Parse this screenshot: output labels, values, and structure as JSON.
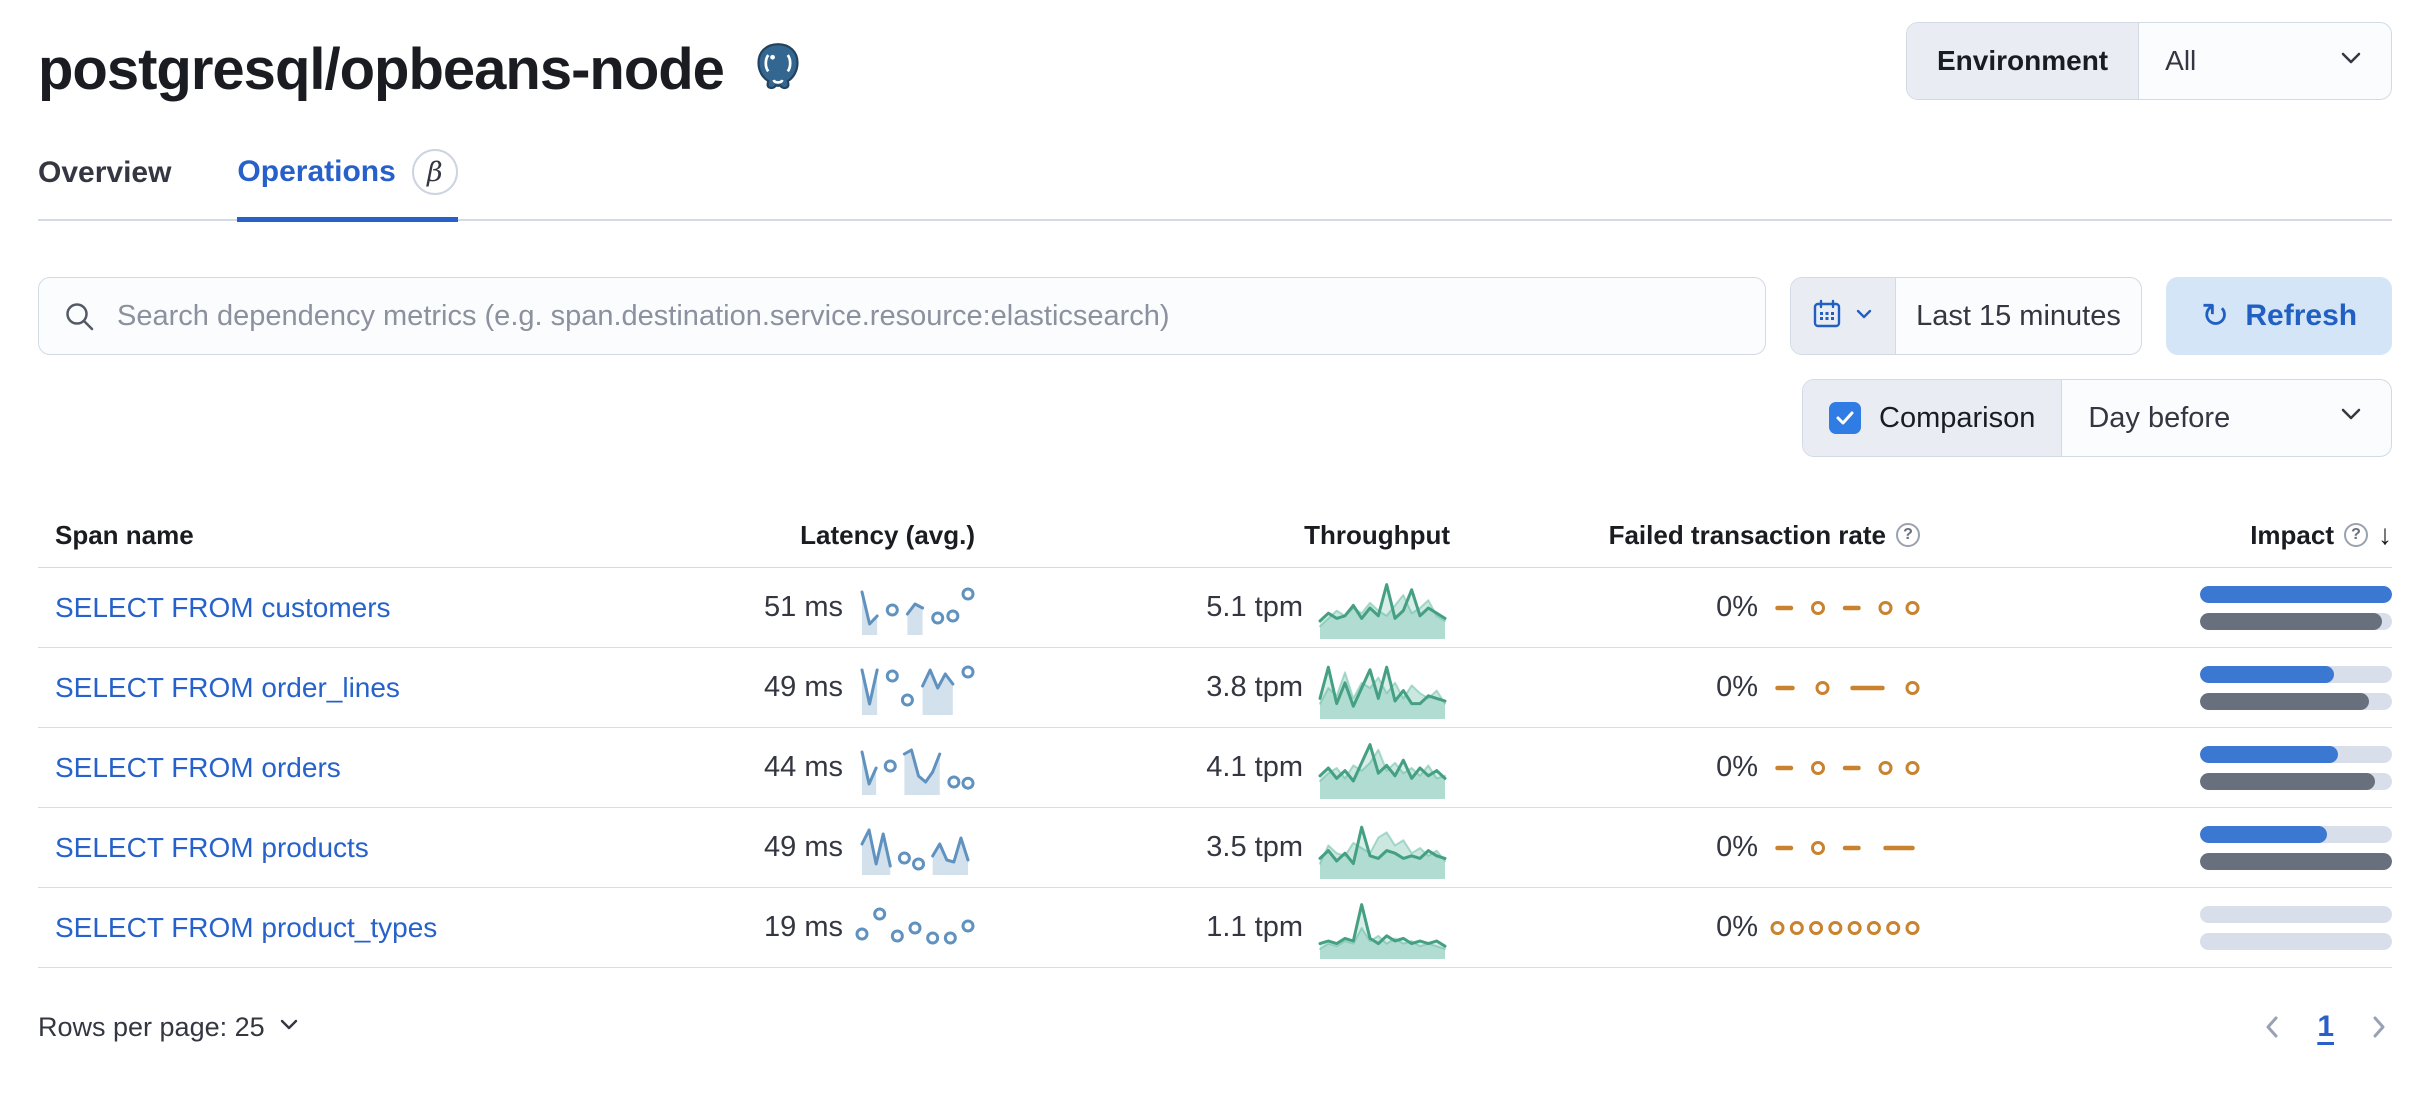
{
  "header": {
    "title": "postgresql/opbeans-node",
    "environment_label": "Environment",
    "environment_value": "All"
  },
  "tabs": [
    {
      "label": "Overview",
      "active": false
    },
    {
      "label": "Operations",
      "active": true,
      "beta": "β"
    }
  ],
  "search": {
    "placeholder": "Search dependency metrics (e.g. span.destination.service.resource:elasticsearch)"
  },
  "time_controls": {
    "range_label": "Last 15 minutes",
    "refresh_label": "Refresh",
    "refresh_glyph": "↻",
    "comparison_label": "Comparison",
    "comparison_checked": true,
    "comparison_value": "Day before"
  },
  "colors": {
    "link_blue": "#2662c9",
    "impact_blue": "#3a78d2",
    "impact_grey": "#69707d",
    "latency_blue": "#6092C0",
    "throughput_green": "#45a083",
    "failed_orange": "#c9822e"
  },
  "table": {
    "columns": [
      "Span name",
      "Latency (avg.)",
      "Throughput",
      "Failed transaction rate",
      "Impact"
    ],
    "sort_arrow": "↓",
    "rows": [
      {
        "span_name": "SELECT FROM customers",
        "latency": "51 ms",
        "throughput": "5.1 tpm",
        "failed_rate": "0%",
        "impact": {
          "current": 100,
          "previous": 95
        },
        "latency_spark": [
          0.9,
          0.1,
          0.3,
          null,
          0.45,
          null,
          0.35,
          0.6,
          0.5,
          null,
          0.25,
          null,
          0.3,
          null,
          0.85
        ],
        "throughput_spark": {
          "current": [
            0.25,
            0.4,
            0.3,
            0.35,
            0.55,
            0.3,
            0.5,
            0.35,
            0.95,
            0.3,
            0.45,
            0.85,
            0.35,
            0.5,
            0.4,
            0.3
          ],
          "previous": [
            0.15,
            0.3,
            0.45,
            0.35,
            0.5,
            0.4,
            0.6,
            0.45,
            0.35,
            0.55,
            0.75,
            0.4,
            0.5,
            0.65,
            0.35,
            0.25
          ]
        },
        "failed_spark": [
          0.5,
          0.5,
          null,
          0.5,
          null,
          0.5,
          0.5,
          null,
          0.5,
          null,
          0.5
        ]
      },
      {
        "span_name": "SELECT FROM order_lines",
        "latency": "49 ms",
        "throughput": "3.8 tpm",
        "failed_rate": "0%",
        "impact": {
          "current": 70,
          "previous": 88
        },
        "latency_spark": [
          0.95,
          0.1,
          0.95,
          null,
          0.8,
          null,
          0.2,
          null,
          0.55,
          0.95,
          0.5,
          0.85,
          0.6,
          null,
          0.9
        ],
        "throughput_spark": {
          "current": [
            0.3,
            0.9,
            0.2,
            0.6,
            0.15,
            0.5,
            0.85,
            0.3,
            0.9,
            0.25,
            0.45,
            0.2,
            0.2,
            0.35,
            0.3,
            0.25
          ],
          "previous": [
            0.2,
            0.5,
            0.35,
            0.8,
            0.3,
            0.6,
            0.5,
            0.7,
            0.4,
            0.6,
            0.3,
            0.55,
            0.4,
            0.3,
            0.45,
            0.2
          ]
        },
        "failed_spark": [
          0.5,
          0.5,
          null,
          0.5,
          null,
          0.5,
          0.5,
          0.5,
          null,
          0.5
        ]
      },
      {
        "span_name": "SELECT FROM orders",
        "latency": "44 ms",
        "throughput": "4.1 tpm",
        "failed_rate": "0%",
        "impact": {
          "current": 72,
          "previous": 91
        },
        "latency_spark": [
          0.9,
          0.1,
          0.5,
          null,
          0.55,
          null,
          0.85,
          0.95,
          0.3,
          0.15,
          0.4,
          0.85,
          null,
          0.15,
          null,
          0.12
        ],
        "throughput_spark": {
          "current": [
            0.35,
            0.5,
            0.3,
            0.45,
            0.25,
            0.6,
            0.95,
            0.4,
            0.55,
            0.35,
            0.65,
            0.3,
            0.5,
            0.35,
            0.45,
            0.3
          ],
          "previous": [
            0.25,
            0.4,
            0.5,
            0.3,
            0.55,
            0.45,
            0.6,
            0.85,
            0.45,
            0.6,
            0.4,
            0.5,
            0.35,
            0.55,
            0.3,
            0.35
          ]
        },
        "failed_spark": [
          0.5,
          0.5,
          null,
          0.5,
          null,
          0.5,
          0.5,
          null,
          0.5,
          null,
          0.5
        ]
      },
      {
        "span_name": "SELECT FROM products",
        "latency": "49 ms",
        "throughput": "3.5 tpm",
        "failed_rate": "0%",
        "impact": {
          "current": 66,
          "previous": 100
        },
        "latency_spark": [
          0.6,
          0.95,
          0.1,
          0.85,
          0.05,
          null,
          0.25,
          null,
          0.1,
          null,
          0.3,
          0.6,
          0.2,
          0.15,
          0.75,
          0.2
        ],
        "throughput_spark": {
          "current": [
            0.3,
            0.45,
            0.25,
            0.4,
            0.2,
            0.9,
            0.35,
            0.3,
            0.45,
            0.4,
            0.3,
            0.35,
            0.3,
            0.45,
            0.35,
            0.3
          ],
          "previous": [
            0.2,
            0.55,
            0.4,
            0.35,
            0.6,
            0.5,
            0.4,
            0.7,
            0.8,
            0.55,
            0.65,
            0.4,
            0.5,
            0.35,
            0.45,
            0.25
          ]
        },
        "failed_spark": [
          0.5,
          0.5,
          null,
          0.5,
          null,
          0.5,
          0.5,
          null,
          0.5,
          0.5,
          0.5
        ]
      },
      {
        "span_name": "SELECT FROM product_types",
        "latency": "19 ms",
        "throughput": "1.1 tpm",
        "failed_rate": "0%",
        "impact": {
          "current": 0,
          "previous": 0
        },
        "latency_spark": [
          0.35,
          null,
          0.85,
          null,
          0.3,
          null,
          0.5,
          null,
          0.25,
          null,
          0.25,
          null,
          0.55
        ],
        "throughput_spark": {
          "current": [
            0.2,
            0.25,
            0.2,
            0.3,
            0.25,
            0.95,
            0.3,
            0.2,
            0.35,
            0.25,
            0.3,
            0.2,
            0.25,
            0.2,
            0.25,
            0.15
          ],
          "previous": [
            0.1,
            0.2,
            0.15,
            0.25,
            0.2,
            0.5,
            0.25,
            0.35,
            0.2,
            0.3,
            0.2,
            0.25,
            0.15,
            0.2,
            0.15,
            0.1
          ]
        },
        "failed_spark": [
          0.5,
          null,
          0.5,
          null,
          0.5,
          null,
          0.5,
          null,
          0.5,
          null,
          0.5,
          null,
          0.5,
          null,
          0.5
        ]
      }
    ]
  },
  "footer": {
    "rows_per_page_label": "Rows per page: 25",
    "page": "1"
  }
}
